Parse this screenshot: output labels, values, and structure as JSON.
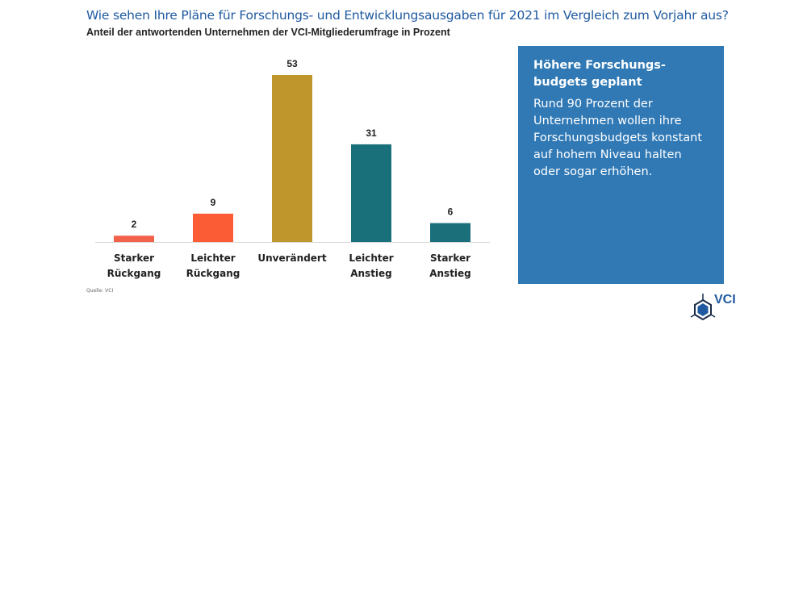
{
  "title": "Wie sehen Ihre Pläne für Forschungs- und Entwicklungsausgaben für 2021 im Vergleich zum Vorjahr aus?",
  "subtitle": "Anteil der antwortenden Unternehmen der VCI-Mitgliederumfrage in Prozent",
  "source": "Quelle: VCI",
  "info": {
    "heading": "Höhere Forschungs-budgets geplant",
    "body": "Rund 90 Prozent der Unternehmen wollen ihre Forschungsbudgets konstant auf hohem Niveau halten oder sogar erhöhen."
  },
  "logo": {
    "text": "VCI",
    "icon": "hexagon-molecule-icon"
  },
  "colors": {
    "title": "#1f5aa0",
    "infobox": "#3079b5"
  },
  "chart_data": {
    "type": "bar",
    "title": "Wie sehen Ihre Pläne für Forschungs- und Entwicklungsausgaben für 2021 im Vergleich zum Vorjahr aus?",
    "subtitle": "Anteil der antwortenden Unternehmen der VCI-Mitgliederumfrage in Prozent",
    "categories": [
      [
        "Starker",
        "Rückgang"
      ],
      [
        "Leichter",
        "Rückgang"
      ],
      [
        "Unverändert"
      ],
      [
        "Leichter",
        "Anstieg"
      ],
      [
        "Starker",
        "Anstieg"
      ]
    ],
    "values": [
      2,
      9,
      53,
      31,
      6
    ],
    "colors": [
      "#f2614a",
      "#fb5c35",
      "#bf962b",
      "#19707a",
      "#1b6f7a"
    ],
    "ylim": [
      0,
      53
    ],
    "grid": false,
    "data_labels": true
  }
}
